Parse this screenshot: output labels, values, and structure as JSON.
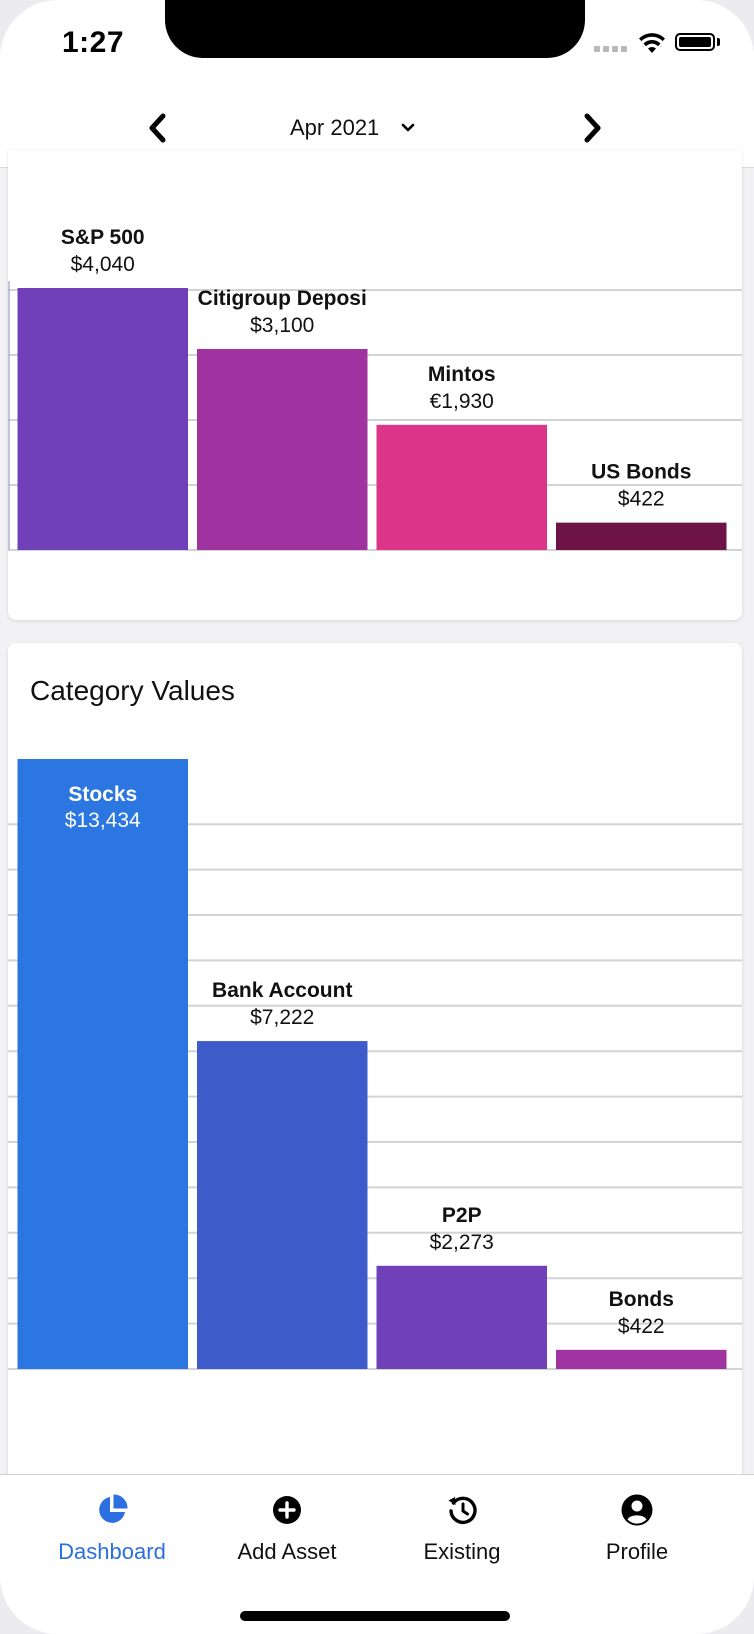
{
  "status_bar": {
    "time": "1:27"
  },
  "header": {
    "month": "Apr 2021"
  },
  "asset_chart": {
    "chart_data": {
      "type": "bar",
      "categories": [
        "S&P 500",
        "Citigroup Deposi",
        "Mintos",
        "US Bonds"
      ],
      "values": [
        4040,
        3100,
        1930,
        422
      ],
      "value_labels": [
        "$4,040",
        "$3,100",
        "€1,930",
        "$422"
      ],
      "colors": [
        "#6f40b7",
        "#9f33a0",
        "#dc3489",
        "#6e1346"
      ],
      "grid": true
    }
  },
  "category_chart": {
    "title": "Category Values",
    "chart_data": {
      "type": "bar",
      "categories": [
        "Stocks",
        "Bank Account",
        "P2P",
        "Bonds"
      ],
      "values": [
        13434,
        7222,
        2273,
        422
      ],
      "value_labels": [
        "$13,434",
        "$7,222",
        "$2,273",
        "$422"
      ],
      "colors": [
        "#2b76e1",
        "#3d5bc9",
        "#6f40b7",
        "#a035a2"
      ],
      "grid": true
    }
  },
  "tabs": [
    {
      "label": "Dashboard",
      "icon": "pie-chart-icon",
      "active": true
    },
    {
      "label": "Add Asset",
      "icon": "add-circle-icon",
      "active": false
    },
    {
      "label": "Existing",
      "icon": "history-icon",
      "active": false
    },
    {
      "label": "Profile",
      "icon": "profile-icon",
      "active": false
    }
  ],
  "colors": {
    "accent": "#2b6fe0",
    "tab_inactive": "#111111"
  }
}
